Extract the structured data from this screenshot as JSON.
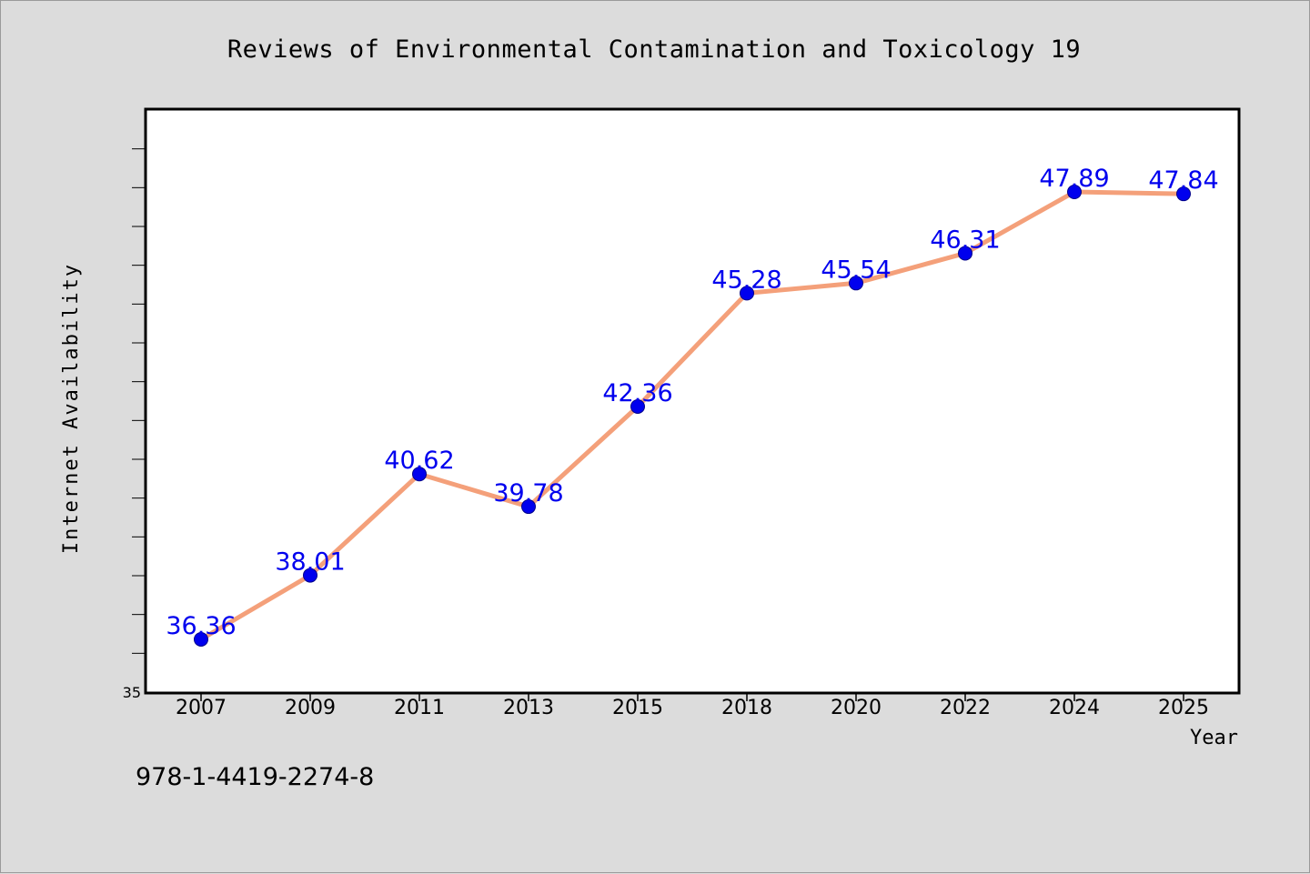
{
  "footer_text": "978-1-4419-2274-8",
  "colors": {
    "background": "#dcdcdc",
    "plot_background": "#ffffff",
    "line": "#f4a07a",
    "marker": "#0000ee",
    "label": "#0000ee",
    "axis": "#000000"
  },
  "chart_data": {
    "type": "line",
    "title": "Reviews of Environmental Contamination and Toxicology 19",
    "xlabel": "Year",
    "ylabel": "Internet Availability",
    "categories": [
      "2007",
      "2009",
      "2011",
      "2013",
      "2015",
      "2018",
      "2020",
      "2022",
      "2024",
      "2025"
    ],
    "series": [
      {
        "values": [
          36.36,
          38.01,
          40.62,
          39.78,
          42.36,
          45.28,
          45.54,
          46.31,
          47.89,
          47.84
        ]
      }
    ],
    "ylim": [
      35,
      50
    ],
    "yticks_labeled": [
      "35"
    ],
    "minor_tick_step": 1,
    "grid": false,
    "legend": "none",
    "marker": "circle"
  }
}
